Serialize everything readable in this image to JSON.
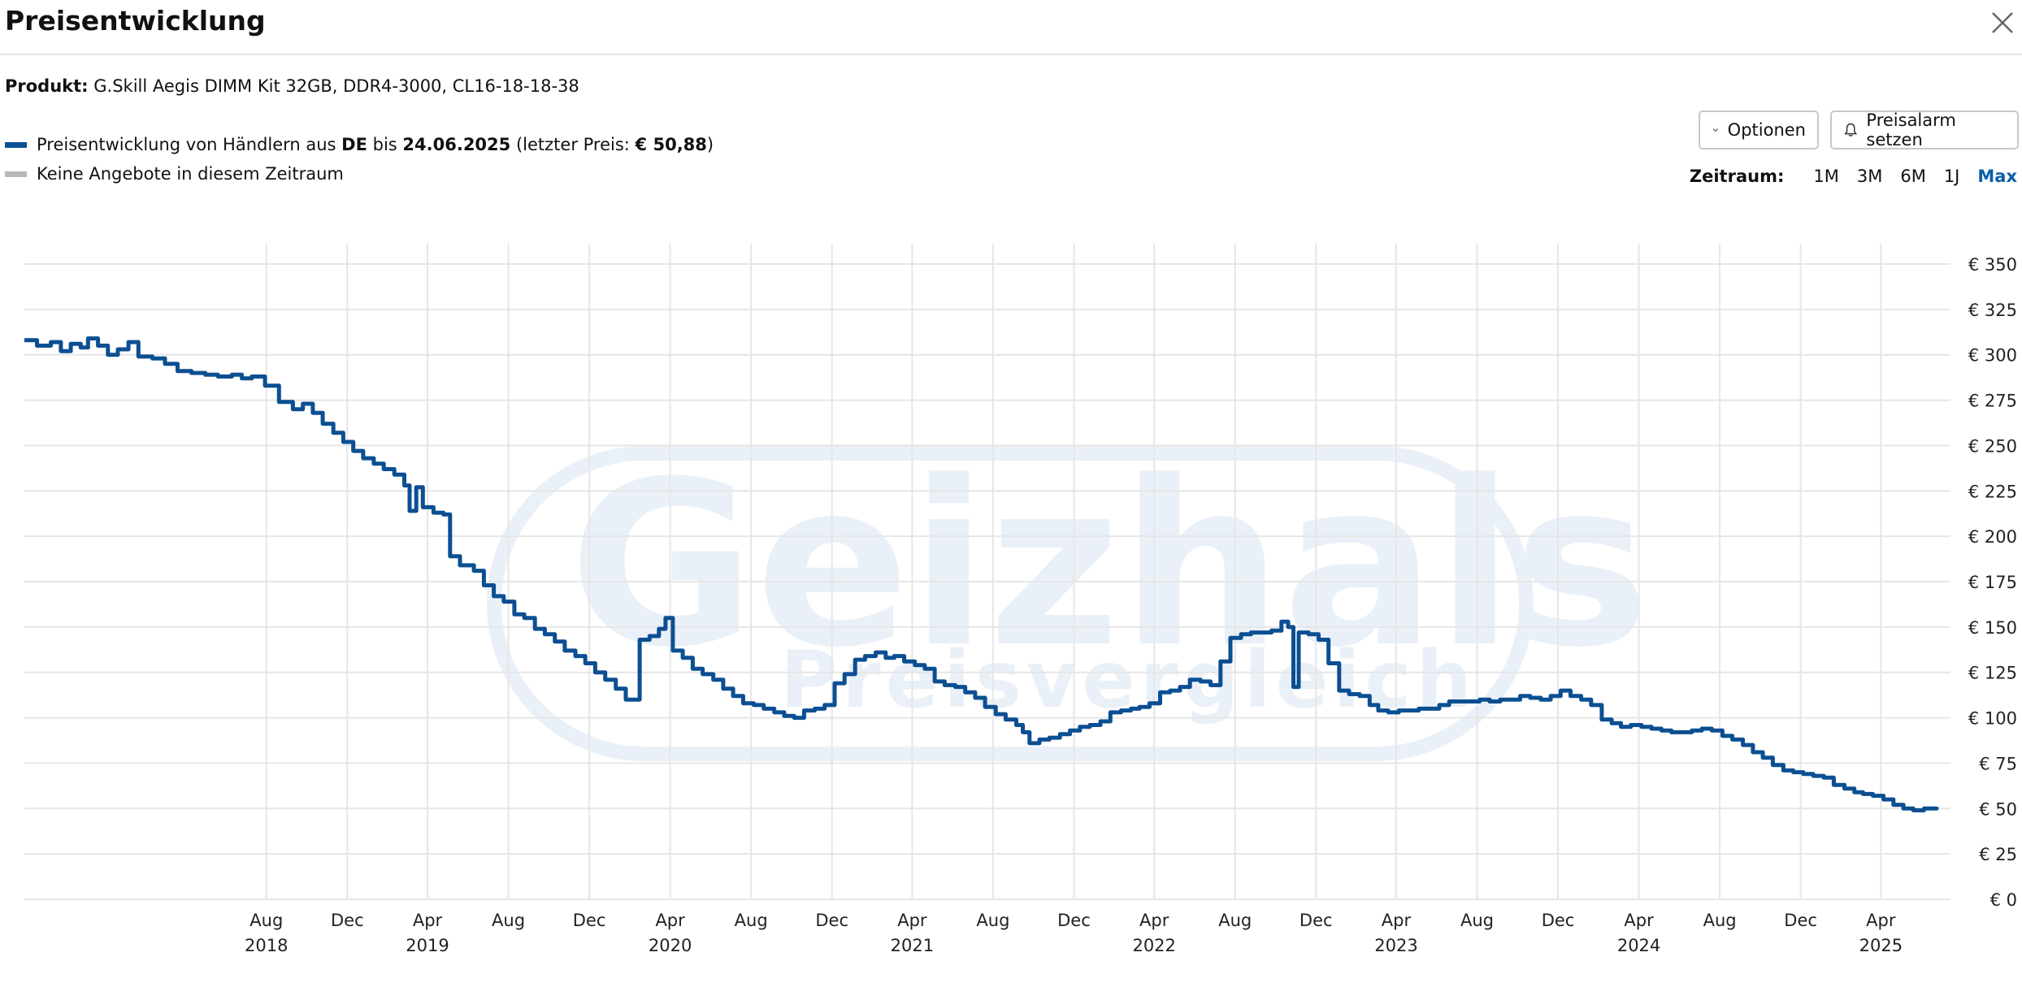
{
  "header": {
    "title": "Preisentwicklung"
  },
  "product": {
    "label": "Produkt:",
    "name": "G.Skill Aegis DIMM Kit 32GB, DDR4-3000, CL16-18-18-38"
  },
  "legend": {
    "line_prefix": "Preisentwicklung von Händlern aus ",
    "country": "DE",
    "until_text": " bis ",
    "date": "24.06.2025",
    "last_price_prefix": " (letzter Preis: ",
    "last_price": "€ 50,88",
    "last_price_suffix": ")",
    "no_offers": "Keine Angebote in diesem Zeitraum"
  },
  "toolbar": {
    "options_label": "Optionen",
    "alarm_label": "Preisalarm setzen"
  },
  "timerange": {
    "label": "Zeitraum:",
    "options": [
      "1M",
      "3M",
      "6M",
      "1J",
      "Max"
    ],
    "active": "Max"
  },
  "icons": {
    "close": "close-icon",
    "options": "chevron-down-icon",
    "alarm": "bell-icon"
  },
  "colors": {
    "line": "#0b4f92",
    "grid": "#e6e6e6",
    "active_range": "#0b5ea8",
    "watermark": "#eaf0f7"
  },
  "watermark": {
    "brand": "Geizhals",
    "sub": "Preisvergleich"
  },
  "chart_data": {
    "type": "line",
    "y_unit": "€",
    "ylim": [
      0,
      350
    ],
    "y_ticks": [
      0,
      25,
      50,
      75,
      100,
      125,
      150,
      175,
      200,
      225,
      250,
      275,
      300,
      325,
      350
    ],
    "y_tick_labels": [
      "€ 0",
      "€ 25",
      "€ 50",
      "€ 75",
      "€ 100",
      "€ 125",
      "€ 150",
      "€ 175",
      "€ 200",
      "€ 225",
      "€ 250",
      "€ 275",
      "€ 300",
      "€ 325",
      "€ 350"
    ],
    "x_ticks": [
      {
        "date": "2018-08",
        "month": "Aug",
        "year": "2018"
      },
      {
        "date": "2018-12",
        "month": "Dec",
        "year": ""
      },
      {
        "date": "2019-04",
        "month": "Apr",
        "year": "2019"
      },
      {
        "date": "2019-08",
        "month": "Aug",
        "year": ""
      },
      {
        "date": "2019-12",
        "month": "Dec",
        "year": ""
      },
      {
        "date": "2020-04",
        "month": "Apr",
        "year": "2020"
      },
      {
        "date": "2020-08",
        "month": "Aug",
        "year": ""
      },
      {
        "date": "2020-12",
        "month": "Dec",
        "year": ""
      },
      {
        "date": "2021-04",
        "month": "Apr",
        "year": "2021"
      },
      {
        "date": "2021-08",
        "month": "Aug",
        "year": ""
      },
      {
        "date": "2021-12",
        "month": "Dec",
        "year": ""
      },
      {
        "date": "2022-04",
        "month": "Apr",
        "year": "2022"
      },
      {
        "date": "2022-08",
        "month": "Aug",
        "year": ""
      },
      {
        "date": "2022-12",
        "month": "Dec",
        "year": ""
      },
      {
        "date": "2023-04",
        "month": "Apr",
        "year": "2023"
      },
      {
        "date": "2023-08",
        "month": "Aug",
        "year": ""
      },
      {
        "date": "2023-12",
        "month": "Dec",
        "year": ""
      },
      {
        "date": "2024-04",
        "month": "Apr",
        "year": "2024"
      },
      {
        "date": "2024-08",
        "month": "Aug",
        "year": ""
      },
      {
        "date": "2024-12",
        "month": "Dec",
        "year": ""
      },
      {
        "date": "2025-04",
        "month": "Apr",
        "year": "2025"
      }
    ],
    "xlim": [
      "2017-08-01",
      "2025-07-15"
    ],
    "grid": true,
    "series": [
      {
        "color": "#0b4f92",
        "points": [
          [
            "2017-08-01",
            308
          ],
          [
            "2017-08-20",
            305
          ],
          [
            "2017-09-10",
            307
          ],
          [
            "2017-09-25",
            302
          ],
          [
            "2017-10-10",
            306
          ],
          [
            "2017-10-25",
            304
          ],
          [
            "2017-11-05",
            309
          ],
          [
            "2017-11-20",
            305
          ],
          [
            "2017-12-05",
            300
          ],
          [
            "2017-12-20",
            303
          ],
          [
            "2018-01-05",
            307
          ],
          [
            "2018-01-20",
            299
          ],
          [
            "2018-02-10",
            298
          ],
          [
            "2018-03-01",
            295
          ],
          [
            "2018-03-20",
            291
          ],
          [
            "2018-04-10",
            290
          ],
          [
            "2018-05-01",
            289
          ],
          [
            "2018-05-20",
            288
          ],
          [
            "2018-06-10",
            289
          ],
          [
            "2018-06-25",
            287
          ],
          [
            "2018-07-10",
            288
          ],
          [
            "2018-07-30",
            283
          ],
          [
            "2018-08-20",
            274
          ],
          [
            "2018-09-10",
            270
          ],
          [
            "2018-09-25",
            273
          ],
          [
            "2018-10-10",
            268
          ],
          [
            "2018-10-25",
            262
          ],
          [
            "2018-11-10",
            257
          ],
          [
            "2018-11-25",
            252
          ],
          [
            "2018-12-10",
            247
          ],
          [
            "2018-12-25",
            243
          ],
          [
            "2019-01-10",
            240
          ],
          [
            "2019-01-25",
            237
          ],
          [
            "2019-02-10",
            234
          ],
          [
            "2019-02-25",
            228
          ],
          [
            "2019-03-05",
            214
          ],
          [
            "2019-03-15",
            227
          ],
          [
            "2019-03-25",
            216
          ],
          [
            "2019-04-10",
            213
          ],
          [
            "2019-04-25",
            212
          ],
          [
            "2019-05-05",
            189
          ],
          [
            "2019-05-20",
            184
          ],
          [
            "2019-06-10",
            181
          ],
          [
            "2019-06-25",
            173
          ],
          [
            "2019-07-10",
            167
          ],
          [
            "2019-07-25",
            164
          ],
          [
            "2019-08-10",
            157
          ],
          [
            "2019-08-25",
            155
          ],
          [
            "2019-09-10",
            149
          ],
          [
            "2019-09-25",
            146
          ],
          [
            "2019-10-10",
            142
          ],
          [
            "2019-10-25",
            137
          ],
          [
            "2019-11-10",
            134
          ],
          [
            "2019-11-25",
            130
          ],
          [
            "2019-12-10",
            125
          ],
          [
            "2019-12-25",
            121
          ],
          [
            "2020-01-10",
            116
          ],
          [
            "2020-01-25",
            110
          ],
          [
            "2020-02-05",
            110
          ],
          [
            "2020-02-15",
            143
          ],
          [
            "2020-03-01",
            145
          ],
          [
            "2020-03-15",
            149
          ],
          [
            "2020-03-25",
            155
          ],
          [
            "2020-04-05",
            137
          ],
          [
            "2020-04-20",
            133
          ],
          [
            "2020-05-05",
            127
          ],
          [
            "2020-05-20",
            124
          ],
          [
            "2020-06-05",
            121
          ],
          [
            "2020-06-20",
            116
          ],
          [
            "2020-07-05",
            112
          ],
          [
            "2020-07-20",
            108
          ],
          [
            "2020-08-05",
            107
          ],
          [
            "2020-08-20",
            105
          ],
          [
            "2020-09-05",
            103
          ],
          [
            "2020-09-20",
            101
          ],
          [
            "2020-10-05",
            100
          ],
          [
            "2020-10-20",
            104
          ],
          [
            "2020-11-05",
            105
          ],
          [
            "2020-11-20",
            107
          ],
          [
            "2020-12-05",
            119
          ],
          [
            "2020-12-20",
            124
          ],
          [
            "2021-01-05",
            132
          ],
          [
            "2021-01-20",
            134
          ],
          [
            "2021-02-05",
            136
          ],
          [
            "2021-02-20",
            133
          ],
          [
            "2021-03-05",
            134
          ],
          [
            "2021-03-20",
            131
          ],
          [
            "2021-04-05",
            129
          ],
          [
            "2021-04-20",
            127
          ],
          [
            "2021-05-05",
            120
          ],
          [
            "2021-05-20",
            118
          ],
          [
            "2021-06-05",
            117
          ],
          [
            "2021-06-20",
            114
          ],
          [
            "2021-07-05",
            111
          ],
          [
            "2021-07-20",
            106
          ],
          [
            "2021-08-05",
            102
          ],
          [
            "2021-08-20",
            99
          ],
          [
            "2021-09-05",
            96
          ],
          [
            "2021-09-15",
            92
          ],
          [
            "2021-09-25",
            86
          ],
          [
            "2021-10-10",
            88
          ],
          [
            "2021-10-25",
            89
          ],
          [
            "2021-11-10",
            91
          ],
          [
            "2021-11-25",
            93
          ],
          [
            "2021-12-10",
            95
          ],
          [
            "2021-12-25",
            96
          ],
          [
            "2022-01-10",
            98
          ],
          [
            "2022-01-25",
            103
          ],
          [
            "2022-02-10",
            104
          ],
          [
            "2022-02-25",
            105
          ],
          [
            "2022-03-10",
            106
          ],
          [
            "2022-03-25",
            108
          ],
          [
            "2022-04-10",
            114
          ],
          [
            "2022-04-25",
            115
          ],
          [
            "2022-05-10",
            117
          ],
          [
            "2022-05-25",
            121
          ],
          [
            "2022-06-10",
            120
          ],
          [
            "2022-06-25",
            118
          ],
          [
            "2022-07-10",
            131
          ],
          [
            "2022-07-25",
            144
          ],
          [
            "2022-08-10",
            146
          ],
          [
            "2022-08-25",
            147
          ],
          [
            "2022-09-10",
            147
          ],
          [
            "2022-09-25",
            148
          ],
          [
            "2022-10-10",
            153
          ],
          [
            "2022-10-20",
            150
          ],
          [
            "2022-10-28",
            117
          ],
          [
            "2022-11-05",
            147
          ],
          [
            "2022-11-20",
            146
          ],
          [
            "2022-12-05",
            143
          ],
          [
            "2022-12-20",
            130
          ],
          [
            "2023-01-05",
            115
          ],
          [
            "2023-01-20",
            113
          ],
          [
            "2023-02-05",
            112
          ],
          [
            "2023-02-20",
            107
          ],
          [
            "2023-03-05",
            104
          ],
          [
            "2023-03-20",
            103
          ],
          [
            "2023-04-05",
            104
          ],
          [
            "2023-04-20",
            104
          ],
          [
            "2023-05-05",
            105
          ],
          [
            "2023-05-20",
            105
          ],
          [
            "2023-06-05",
            107
          ],
          [
            "2023-06-20",
            109
          ],
          [
            "2023-07-05",
            109
          ],
          [
            "2023-07-20",
            109
          ],
          [
            "2023-08-05",
            110
          ],
          [
            "2023-08-20",
            109
          ],
          [
            "2023-09-05",
            110
          ],
          [
            "2023-09-20",
            110
          ],
          [
            "2023-10-05",
            112
          ],
          [
            "2023-10-20",
            111
          ],
          [
            "2023-11-05",
            110
          ],
          [
            "2023-11-20",
            112
          ],
          [
            "2023-12-05",
            115
          ],
          [
            "2023-12-20",
            112
          ],
          [
            "2024-01-05",
            110
          ],
          [
            "2024-01-20",
            107
          ],
          [
            "2024-02-05",
            99
          ],
          [
            "2024-02-20",
            97
          ],
          [
            "2024-03-05",
            95
          ],
          [
            "2024-03-20",
            96
          ],
          [
            "2024-04-05",
            95
          ],
          [
            "2024-04-20",
            94
          ],
          [
            "2024-05-05",
            93
          ],
          [
            "2024-05-20",
            92
          ],
          [
            "2024-06-05",
            92
          ],
          [
            "2024-06-20",
            93
          ],
          [
            "2024-07-05",
            94
          ],
          [
            "2024-07-20",
            93
          ],
          [
            "2024-08-05",
            90
          ],
          [
            "2024-08-20",
            88
          ],
          [
            "2024-09-05",
            85
          ],
          [
            "2024-09-20",
            81
          ],
          [
            "2024-10-05",
            78
          ],
          [
            "2024-10-20",
            74
          ],
          [
            "2024-11-05",
            71
          ],
          [
            "2024-11-20",
            70
          ],
          [
            "2024-12-05",
            69
          ],
          [
            "2024-12-20",
            68
          ],
          [
            "2025-01-05",
            67
          ],
          [
            "2025-01-20",
            63
          ],
          [
            "2025-02-05",
            61
          ],
          [
            "2025-02-20",
            59
          ],
          [
            "2025-03-05",
            58
          ],
          [
            "2025-03-20",
            57
          ],
          [
            "2025-04-05",
            55
          ],
          [
            "2025-04-20",
            52
          ],
          [
            "2025-05-05",
            50
          ],
          [
            "2025-05-20",
            49
          ],
          [
            "2025-06-05",
            50
          ],
          [
            "2025-06-24",
            50.88
          ]
        ]
      }
    ]
  }
}
